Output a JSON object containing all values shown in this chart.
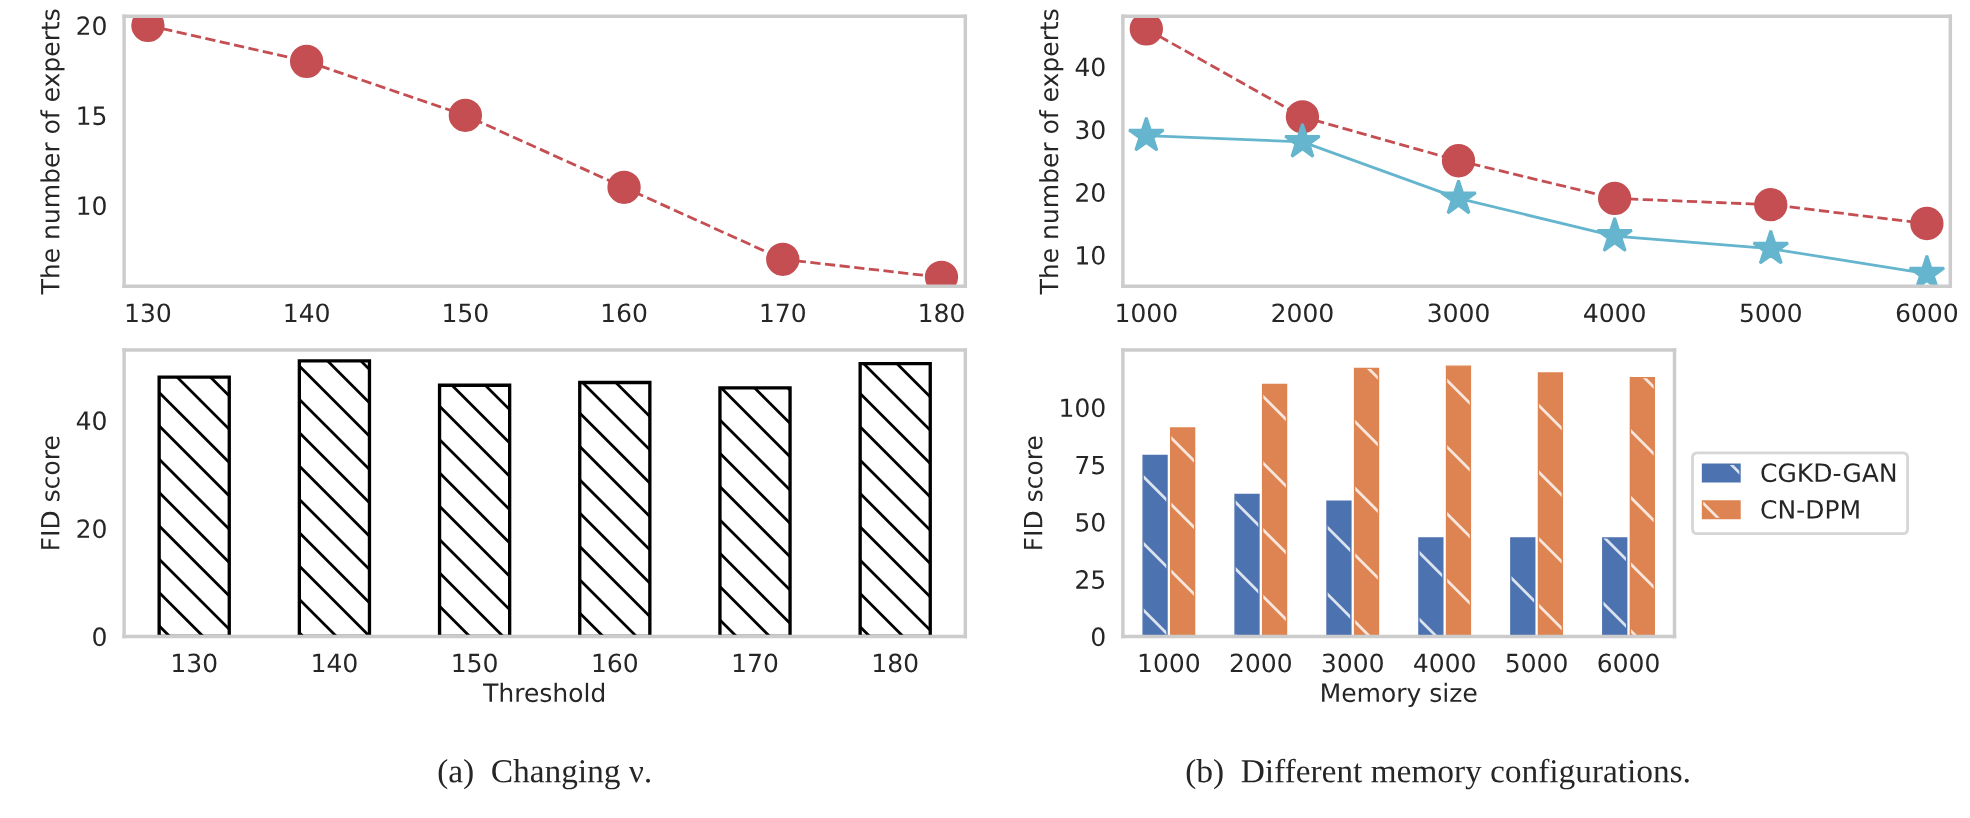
{
  "chart_data": [
    {
      "type": "line",
      "categories": [
        "130",
        "140",
        "150",
        "160",
        "170",
        "180"
      ],
      "ylabel": "The number of experts",
      "ylim": [
        5.5,
        20.5
      ],
      "yticks": [
        10,
        15,
        20
      ],
      "grid": false,
      "legend": false,
      "series": [
        {
          "color": "#c44e52",
          "values": [
            20,
            18,
            15,
            11,
            7,
            6
          ],
          "marker": "circle",
          "line_style": "dashed"
        }
      ]
    },
    {
      "type": "bar",
      "categories": [
        "130",
        "140",
        "150",
        "160",
        "170",
        "180"
      ],
      "xlabel": "Threshold",
      "ylabel": "FID score",
      "ylim": [
        0,
        53
      ],
      "yticks": [
        0,
        20,
        40
      ],
      "grid": false,
      "legend": false,
      "series": [
        {
          "color": "#000000",
          "values": [
            48,
            51,
            46.5,
            47,
            46,
            50.5
          ]
        }
      ],
      "annotations": [
        "(a)  Changing ν."
      ]
    },
    {
      "type": "line",
      "categories": [
        "1000",
        "2000",
        "3000",
        "4000",
        "5000",
        "6000"
      ],
      "ylabel": "The number of experts",
      "ylim": [
        5,
        48
      ],
      "yticks": [
        10,
        20,
        30,
        40
      ],
      "grid": false,
      "legend": false,
      "series": [
        {
          "color": "#c44e52",
          "values": [
            46,
            32,
            25,
            19,
            18,
            15
          ],
          "marker": "circle",
          "line_style": "dashed"
        },
        {
          "color": "#64b5cd",
          "values": [
            29,
            28,
            19,
            13,
            11,
            7
          ],
          "marker": "star",
          "line_style": "solid"
        }
      ]
    },
    {
      "type": "bar",
      "categories": [
        "1000",
        "2000",
        "3000",
        "4000",
        "5000",
        "6000"
      ],
      "xlabel": "Memory size",
      "ylabel": "FID score",
      "ylim": [
        0,
        125
      ],
      "yticks": [
        0,
        25,
        50,
        75,
        100
      ],
      "grid": false,
      "legend": "right",
      "series": [
        {
          "name": "CGKD-GAN",
          "color": "#4c72b0",
          "values": [
            79,
            62,
            59,
            43,
            43,
            43
          ]
        },
        {
          "name": "CN-DPM",
          "color": "#dd8452",
          "values": [
            91,
            110,
            117,
            118,
            115,
            113
          ]
        }
      ],
      "annotations": [
        "(b)  Different memory configurations."
      ]
    }
  ]
}
